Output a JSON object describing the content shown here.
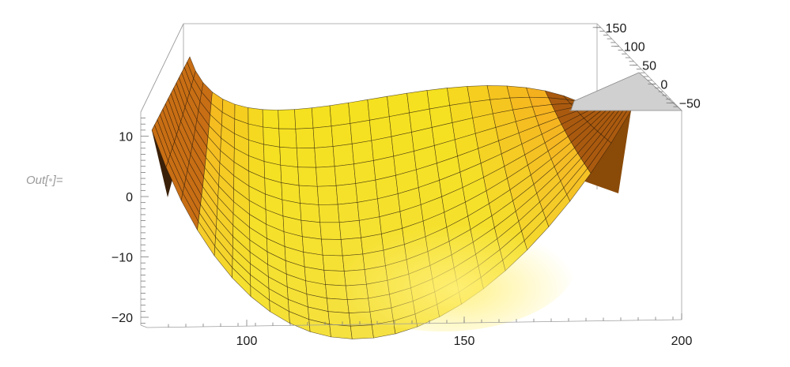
{
  "cell_label": {
    "prefix": "Out[",
    "dot": "•",
    "suffix": "]="
  },
  "chart_data": {
    "type": "surface3d",
    "x_axis": {
      "range": [
        80,
        200
      ],
      "ticks": [
        100,
        150,
        200
      ],
      "tick_labels": [
        "100",
        "150",
        "200"
      ]
    },
    "y_axis": {
      "range": [
        -70,
        160
      ],
      "ticks": [
        150,
        100,
        50,
        0,
        -50
      ],
      "tick_labels": [
        "150",
        "100",
        "50",
        "0",
        "−50"
      ]
    },
    "z_axis": {
      "range": [
        -22,
        14
      ],
      "ticks": [
        10,
        0,
        -10,
        -20
      ],
      "tick_labels": [
        "10",
        "0",
        "−10",
        "−20"
      ]
    },
    "surface": {
      "colors": {
        "light": "#ffe066",
        "mid": "#f5a623",
        "dark": "#8a4a08",
        "back": "#3a2008",
        "cap": "#d0d0d0",
        "mesh": "#2a1a08"
      },
      "u_divisions": 24,
      "v_divisions": 14
    },
    "grid": false,
    "box": true
  }
}
